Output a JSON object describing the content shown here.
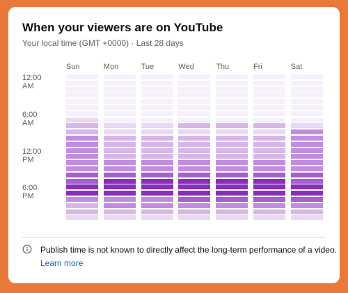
{
  "card": {
    "title": "When your viewers are on YouTube",
    "subtitle": "Your local time (GMT +0000) · Last 28 days"
  },
  "footer": {
    "icon": "info-icon",
    "notice": "Publish time is not known to directly affect the long-term performance of a video.",
    "learn_more": "Learn more",
    "link_color": "#065fd4"
  },
  "chart_data": {
    "type": "heatmap",
    "title": "When your viewers are on YouTube",
    "columns": [
      "Sun",
      "Mon",
      "Tue",
      "Wed",
      "Thu",
      "Fri",
      "Sat"
    ],
    "row_tick_labels": [
      {
        "label": "12:00 AM",
        "hour": 0
      },
      {
        "label": "6:00 AM",
        "hour": 6
      },
      {
        "label": "12:00 PM",
        "hour": 12
      },
      {
        "label": "6:00 PM",
        "hour": 18
      }
    ],
    "rows": 24,
    "row_unit": "hour",
    "scale": {
      "min": 0,
      "max": 5,
      "colors": [
        "#f5f0fb",
        "#ead9f5",
        "#d8b6ea",
        "#c18de0",
        "#a55fce",
        "#8a2db8"
      ]
    },
    "values": [
      [
        0,
        0,
        0,
        0,
        0,
        0,
        0
      ],
      [
        0,
        0,
        0,
        0,
        0,
        0,
        0
      ],
      [
        0,
        0,
        0,
        0,
        0,
        0,
        0
      ],
      [
        0,
        0,
        0,
        0,
        0,
        0,
        0
      ],
      [
        0,
        0,
        0,
        0,
        0,
        0,
        0
      ],
      [
        0,
        0,
        0,
        0,
        0,
        0,
        0
      ],
      [
        0,
        0,
        0,
        0,
        0,
        0,
        0
      ],
      [
        1,
        0,
        0,
        0,
        0,
        0,
        0
      ],
      [
        2,
        1,
        1,
        2,
        2,
        2,
        1
      ],
      [
        2,
        1,
        1,
        1,
        1,
        1,
        3
      ],
      [
        3,
        2,
        2,
        2,
        2,
        2,
        3
      ],
      [
        3,
        2,
        2,
        2,
        2,
        2,
        3
      ],
      [
        3,
        2,
        2,
        2,
        2,
        2,
        3
      ],
      [
        3,
        2,
        2,
        2,
        2,
        2,
        3
      ],
      [
        3,
        3,
        3,
        3,
        3,
        3,
        3
      ],
      [
        3,
        3,
        3,
        3,
        3,
        3,
        3
      ],
      [
        4,
        4,
        4,
        4,
        4,
        4,
        4
      ],
      [
        4,
        5,
        5,
        5,
        5,
        5,
        4
      ],
      [
        5,
        5,
        5,
        5,
        5,
        5,
        5
      ],
      [
        5,
        5,
        5,
        5,
        5,
        5,
        5
      ],
      [
        3,
        3,
        3,
        4,
        4,
        4,
        4
      ],
      [
        2,
        3,
        3,
        3,
        3,
        3,
        3
      ],
      [
        2,
        2,
        2,
        2,
        2,
        2,
        2
      ],
      [
        1,
        1,
        1,
        1,
        1,
        1,
        1
      ]
    ]
  }
}
